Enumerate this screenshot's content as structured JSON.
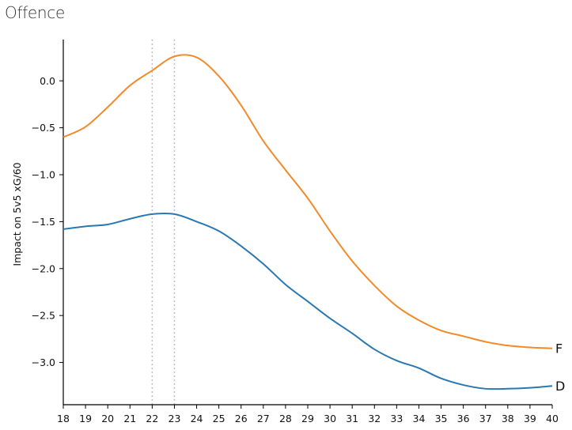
{
  "page": {
    "title": "Offence"
  },
  "chart_data": {
    "type": "line",
    "title": "Offence",
    "xlabel": "",
    "ylabel": "Impact on 5v5 xG/60",
    "xlim": [
      18,
      40
    ],
    "ylim": [
      -3.45,
      0.44
    ],
    "x_ticks": [
      18,
      19,
      20,
      21,
      22,
      23,
      24,
      25,
      26,
      27,
      28,
      29,
      30,
      31,
      32,
      33,
      34,
      35,
      36,
      37,
      38,
      39,
      40
    ],
    "y_ticks": [
      0.0,
      -0.5,
      -1.0,
      -1.5,
      -2.0,
      -2.5,
      -3.0
    ],
    "y_tick_labels": [
      "0.0",
      "−0.5",
      "−1.0",
      "−1.5",
      "−2.0",
      "−2.5",
      "−3.0"
    ],
    "grid": false,
    "reference_lines": [
      {
        "x": 22,
        "style": "dotted",
        "color": "#c0c0c0"
      },
      {
        "x": 23,
        "style": "dotted",
        "color": "#c0c0c0"
      }
    ],
    "x": [
      18,
      19,
      20,
      21,
      22,
      23,
      24,
      25,
      26,
      27,
      28,
      29,
      30,
      31,
      32,
      33,
      34,
      35,
      36,
      37,
      38,
      39,
      40
    ],
    "series": [
      {
        "name": "F",
        "color": "#f28a2a",
        "values": [
          -0.6,
          -0.49,
          -0.28,
          -0.05,
          0.11,
          0.26,
          0.25,
          0.05,
          -0.26,
          -0.64,
          -0.95,
          -1.25,
          -1.6,
          -1.92,
          -2.18,
          -2.4,
          -2.55,
          -2.66,
          -2.72,
          -2.78,
          -2.82,
          -2.84,
          -2.85
        ]
      },
      {
        "name": "D",
        "color": "#2a78b0",
        "values": [
          -1.58,
          -1.55,
          -1.53,
          -1.47,
          -1.42,
          -1.42,
          -1.5,
          -1.6,
          -1.76,
          -1.95,
          -2.17,
          -2.35,
          -2.53,
          -2.69,
          -2.86,
          -2.98,
          -3.06,
          -3.17,
          -3.24,
          -3.28,
          -3.28,
          -3.27,
          -3.25
        ]
      }
    ],
    "legend": "inline labels at line ends"
  }
}
